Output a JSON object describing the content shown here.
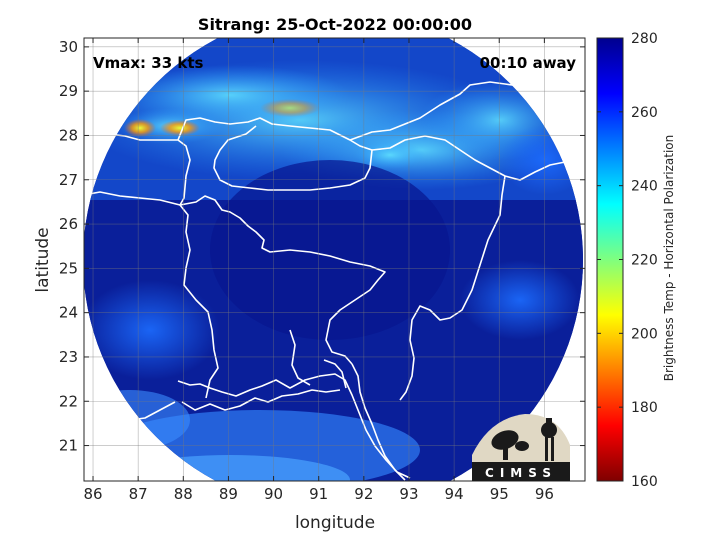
{
  "chart_data": {
    "type": "heatmap",
    "title": "Sitrang: 25-Oct-2022 00:00:00",
    "xlabel": "longitude",
    "ylabel": "latitude",
    "xlim": [
      85.8,
      96.9
    ],
    "ylim": [
      20.2,
      30.2
    ],
    "xticks": [
      "86",
      "87",
      "88",
      "89",
      "90",
      "91",
      "92",
      "93",
      "94",
      "95",
      "96"
    ],
    "yticks": [
      "21",
      "22",
      "23",
      "24",
      "25",
      "26",
      "27",
      "28",
      "29",
      "30"
    ],
    "colorbar": {
      "label": "Brightness Temp - Horizontal Polarization",
      "range": [
        160,
        280
      ],
      "ticks": [
        "160",
        "180",
        "200",
        "220",
        "240",
        "260",
        "280"
      ],
      "colormap": "jet"
    },
    "annotations": {
      "vmax": "Vmax: 33 kts",
      "time_away": "00:10 away"
    },
    "swath": {
      "center_lon": 91.2,
      "center_lat": 25.1,
      "shape": "circle"
    },
    "grid": true
  },
  "logo": {
    "text": "CIMSS"
  },
  "colors": {
    "background_dominant": "#0a1f9a",
    "cold_cloud": "#33c8ff",
    "colorbar_top": "#00008f",
    "colorbar_bottom": "#7f0000"
  }
}
